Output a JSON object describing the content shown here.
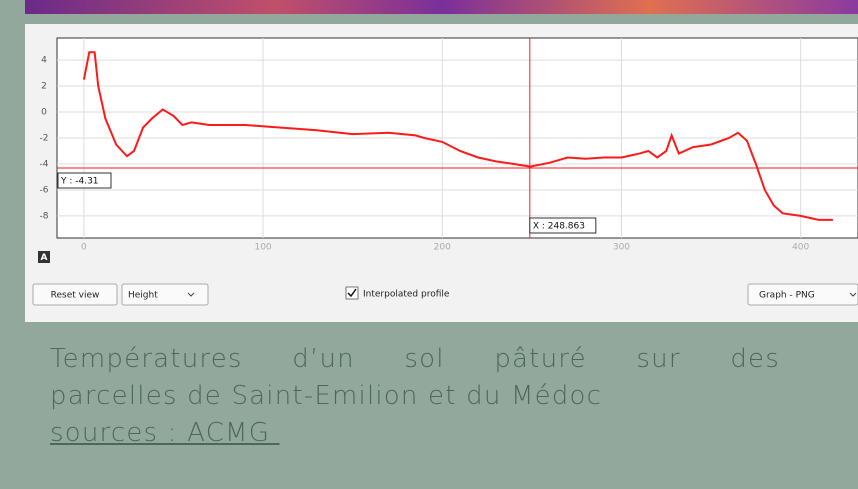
{
  "chart_data": {
    "type": "line",
    "x": [
      0,
      3,
      6,
      8,
      12,
      18,
      24,
      28,
      33,
      38,
      44,
      50,
      55,
      60,
      70,
      90,
      110,
      130,
      150,
      170,
      185,
      190,
      200,
      210,
      220,
      230,
      240,
      249,
      260,
      270,
      280,
      290,
      300,
      310,
      315,
      320,
      325,
      328,
      332,
      340,
      350,
      360,
      365,
      370,
      375,
      380,
      385,
      390,
      400,
      410,
      418
    ],
    "series": [
      {
        "color": "#ff1a1a",
        "values": [
          2.5,
          4.6,
          4.6,
          2,
          -0.5,
          -2.5,
          -3.4,
          -3,
          -1.2,
          -0.5,
          0.2,
          -0.3,
          -1.0,
          -0.8,
          -1.0,
          -1.0,
          -1.2,
          -1.4,
          -1.7,
          -1.6,
          -1.8,
          -2.0,
          -2.3,
          -3.0,
          -3.5,
          -3.8,
          -4.0,
          -4.2,
          -3.9,
          -3.5,
          -3.6,
          -3.5,
          -3.5,
          -3.2,
          -3.0,
          -3.5,
          -3.0,
          -1.8,
          -3.2,
          -2.7,
          -2.5,
          -2.0,
          -1.6,
          -2.2,
          -4,
          -6,
          -7.2,
          -7.8,
          -8.0,
          -8.3,
          -8.3
        ]
      }
    ],
    "xlim": [
      -15,
      432
    ],
    "xticks": [
      0,
      100,
      200,
      300,
      400
    ],
    "ylim": [
      -9.7,
      5.7
    ],
    "yticks": [
      4,
      2,
      0,
      -2,
      -4,
      -6,
      -8
    ],
    "grid": true,
    "cursor": {
      "x": 248.863,
      "y": -4.31,
      "x_label": "X : 248.863",
      "y_label": "Y : -4.31"
    }
  },
  "toolbar": {
    "reset": "Reset view",
    "mode": "Height",
    "checkbox": "Interpolated profile",
    "export": "Graph - PNG",
    "corner": "A"
  },
  "caption": {
    "line1": "Températures d’un sol pâturé sur des",
    "line2": "parcelles de Saint-Emilion et du Médoc",
    "source": "sources : ACMG "
  }
}
